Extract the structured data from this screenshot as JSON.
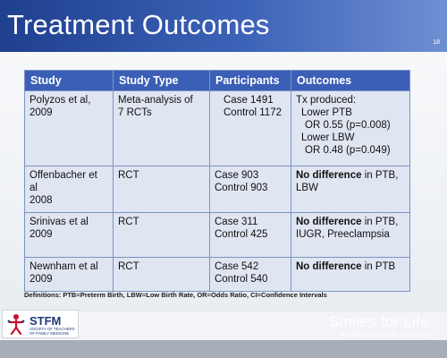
{
  "slide": {
    "title": "Treatment Outcomes",
    "number": "18"
  },
  "table": {
    "headers": [
      "Study",
      "Study Type",
      "Participants",
      "Outcomes"
    ],
    "rows": [
      {
        "study": [
          "Polyzos et al,",
          "2009"
        ],
        "type": [
          "Meta-analysis of",
          "7 RCTs"
        ],
        "participants": [
          "Case 1491",
          "Control 1172"
        ],
        "outcome_lines": [
          "Tx produced:",
          "Lower PTB",
          "OR 0.55 (p=0.008)",
          "Lower LBW",
          "OR 0.48 (p=0.049)"
        ]
      },
      {
        "study": [
          "Offenbacher et",
          "al",
          "2008"
        ],
        "type": [
          "RCT"
        ],
        "participants": [
          "Case 903",
          "Control 903"
        ],
        "outcome_bold": "No difference",
        "outcome_rest": " in PTB,",
        "outcome_line2": "LBW"
      },
      {
        "study": [
          "Srinivas et al",
          "2009"
        ],
        "type": [
          "RCT"
        ],
        "participants": [
          "Case 311",
          "Control 425"
        ],
        "outcome_bold": "No difference",
        "outcome_rest": " in PTB,",
        "outcome_line2": "IUGR, Preeclampsia"
      },
      {
        "study": [
          "Newnham et al",
          "2009"
        ],
        "type": [
          "RCT"
        ],
        "participants": [
          "Case 542",
          "Control 540"
        ],
        "outcome_bold": "No difference",
        "outcome_rest": " in PTB"
      }
    ]
  },
  "definitions": "Definitions: PTB=Preterm Birth, LBW=Low Birth Rate, OR=Odds Ratio, CI=Confidence Intervals",
  "footer": {
    "stfm_logo_text": "STFM",
    "stfm_logo_sub": "SOCIETY OF TEACHERS OF FAMILY MEDICINE",
    "brand": "Smiles for Life",
    "tagline": "A national oral health curriculum"
  },
  "colors": {
    "header_blue": "#2f53a8",
    "table_header": "#3b5fb6",
    "table_cell": "#dfe5f1",
    "stfm_red": "#c8102e"
  }
}
